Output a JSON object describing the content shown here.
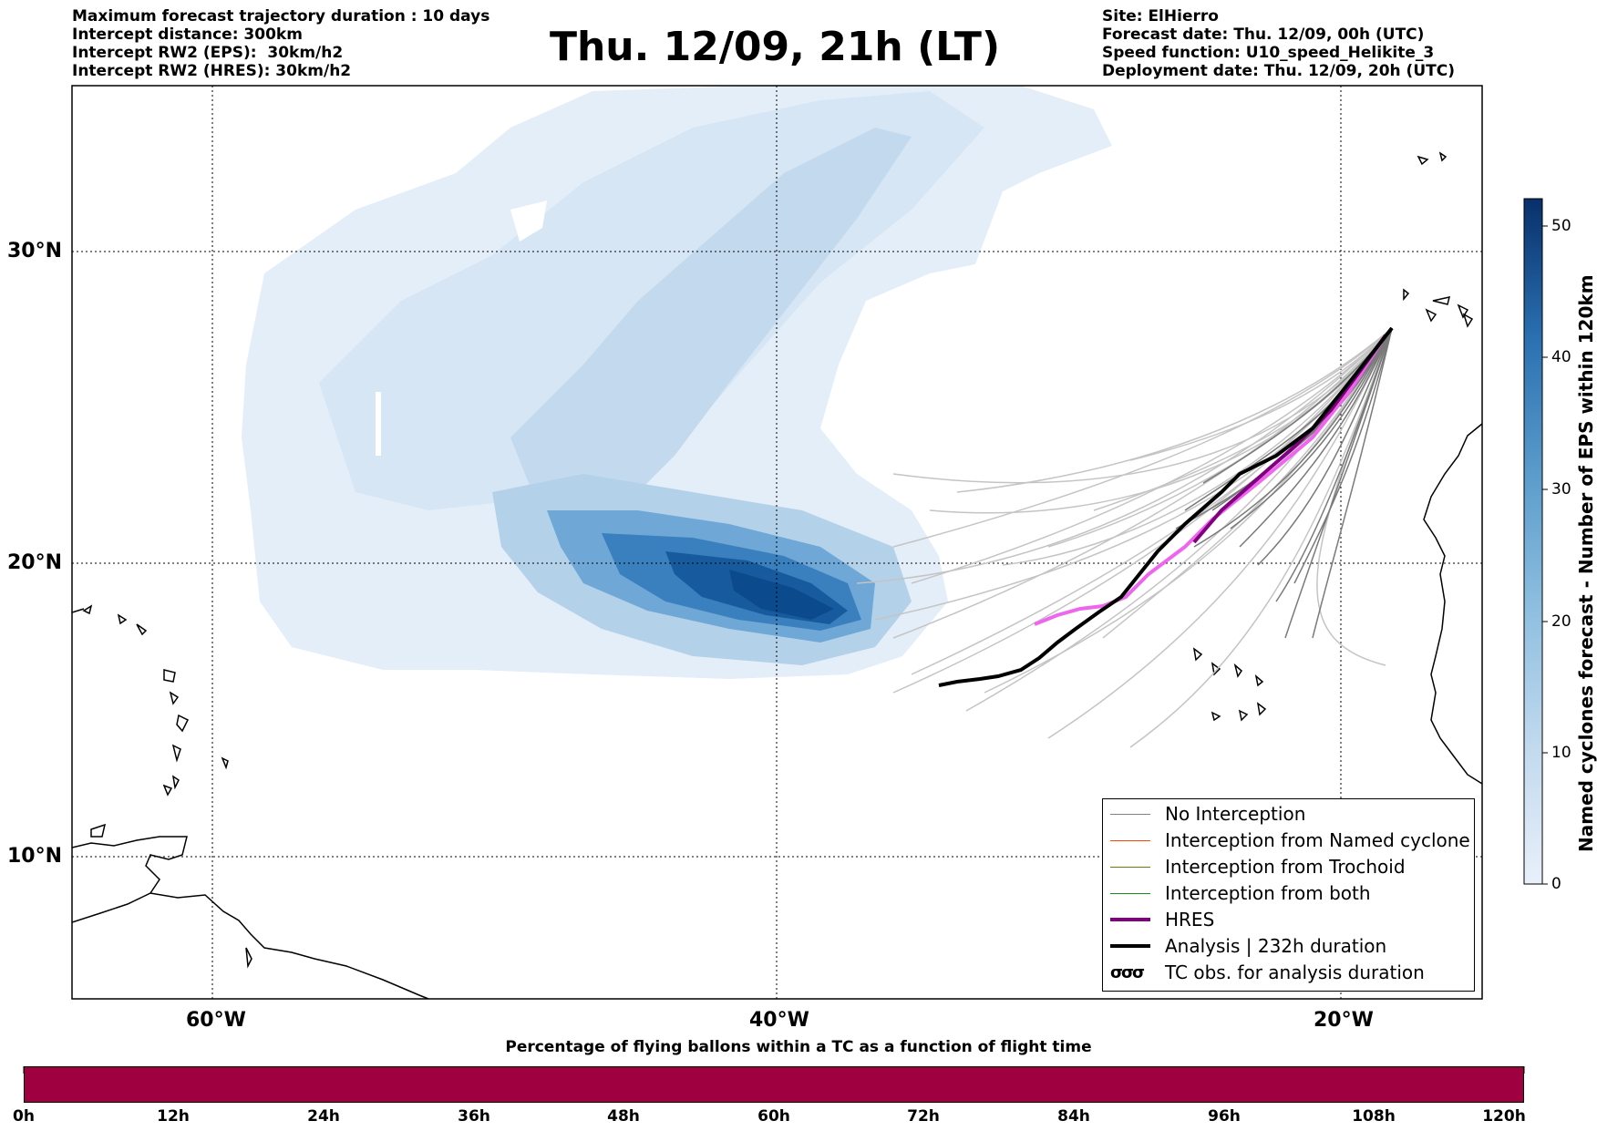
{
  "header_left": [
    "Maximum forecast trajectory duration : 10 days",
    "Intercept distance: 300km",
    "Intercept RW2 (EPS):  30km/h2",
    "Intercept RW2 (HRES): 30km/h2"
  ],
  "title": "Thu. 12/09, 21h (LT)",
  "header_right": [
    "Site: ElHierro",
    "Forecast date: Thu. 12/09, 00h (UTC)",
    "Speed function: U10_speed_Helikite_3",
    "Deployment date: Thu. 12/09, 20h (UTC)"
  ],
  "lat_ticks": [
    "30°N",
    "20°N",
    "10°N"
  ],
  "lon_ticks": [
    "60°W",
    "40°W",
    "20°W"
  ],
  "legend": [
    {
      "label": "No Interception",
      "color": "#808080",
      "width": 1.5
    },
    {
      "label": "Interception from Named cyclone",
      "color": "#ff4500",
      "width": 1.5
    },
    {
      "label": "Interception from Trochoid",
      "color": "#6b7a10",
      "width": 1.5
    },
    {
      "label": "Interception from both",
      "color": "#1a8a1a",
      "width": 1.5
    },
    {
      "label": "HRES",
      "color": "#800080",
      "width": 4
    },
    {
      "label": "Analysis | 232h duration",
      "color": "#000000",
      "width": 4
    },
    {
      "label": "TC obs. for analysis duration",
      "symbol": "σσσ"
    }
  ],
  "colorbar": {
    "title": "Named cyclones forecast - Number of EPS within 120km",
    "ticks": [
      "50",
      "40",
      "30",
      "20",
      "10",
      "0"
    ],
    "range": [
      0,
      52
    ]
  },
  "bottom_bar": {
    "title": "Percentage of flying ballons within a TC as a function of flight time",
    "ticks": [
      "0h",
      "12h",
      "24h",
      "36h",
      "48h",
      "60h",
      "72h",
      "84h",
      "96h",
      "108h",
      "120h"
    ],
    "color": "#9e0040"
  }
}
